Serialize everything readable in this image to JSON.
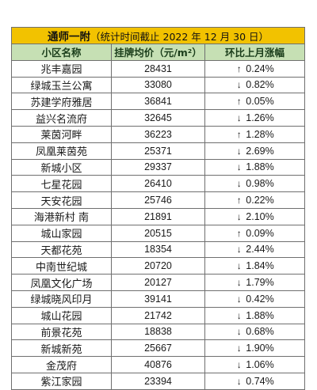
{
  "table": {
    "title_main": "通师一附",
    "title_sub": "（统计时间截止 2022 年 12 月 30 日）",
    "headers": [
      "小区名称",
      "挂牌均价（元/m²）",
      "环比上月涨幅"
    ],
    "rows": [
      {
        "name": "兆丰嘉园",
        "price": "28431",
        "change": "0.24%",
        "direction": "up"
      },
      {
        "name": "绿城玉兰公寓",
        "price": "33080",
        "change": "0.82%",
        "direction": "down"
      },
      {
        "name": "苏建学府雅居",
        "price": "36841",
        "change": "0.05%",
        "direction": "up"
      },
      {
        "name": "益兴名流府",
        "price": "32645",
        "change": "1.26%",
        "direction": "down"
      },
      {
        "name": "莱茵河畔",
        "price": "36223",
        "change": "1.28%",
        "direction": "up"
      },
      {
        "name": "凤凰莱茵苑",
        "price": "25371",
        "change": "2.69%",
        "direction": "down"
      },
      {
        "name": "新城小区",
        "price": "29337",
        "change": "1.88%",
        "direction": "down"
      },
      {
        "name": "七星花园",
        "price": "26410",
        "change": "0.98%",
        "direction": "down"
      },
      {
        "name": "天安花园",
        "price": "25746",
        "change": "0.22%",
        "direction": "up"
      },
      {
        "name": "海港新村 南",
        "price": "21891",
        "change": "2.10%",
        "direction": "down"
      },
      {
        "name": "城山家园",
        "price": "20515",
        "change": "0.09%",
        "direction": "up"
      },
      {
        "name": "天都花苑",
        "price": "18354",
        "change": "2.44%",
        "direction": "down"
      },
      {
        "name": "中南世纪城",
        "price": "20720",
        "change": "1.84%",
        "direction": "down"
      },
      {
        "name": "凤凰文化广场",
        "price": "20127",
        "change": "1.79%",
        "direction": "down"
      },
      {
        "name": "绿城晓风印月",
        "price": "39141",
        "change": "0.42%",
        "direction": "down"
      },
      {
        "name": "城山花园",
        "price": "21742",
        "change": "1.88%",
        "direction": "down"
      },
      {
        "name": "前景花苑",
        "price": "18838",
        "change": "0.68%",
        "direction": "down"
      },
      {
        "name": "新城新苑",
        "price": "25667",
        "change": "1.90%",
        "direction": "down"
      },
      {
        "name": "金茂府",
        "price": "40876",
        "change": "1.06%",
        "direction": "down"
      },
      {
        "name": "紫江家园",
        "price": "23394",
        "change": "0.74%",
        "direction": "down"
      }
    ]
  },
  "colors": {
    "title_bg": "#f2c200",
    "header_bg": "#c6e0b4",
    "up": "#e0302a",
    "down": "#2e9a2e"
  },
  "icons": {
    "up": "arrow-up-icon",
    "down": "arrow-down-icon"
  }
}
